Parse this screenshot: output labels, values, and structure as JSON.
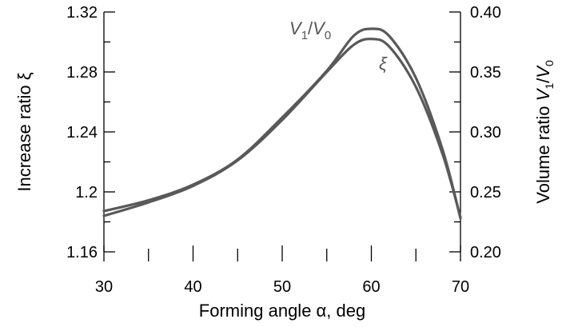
{
  "chart_data": {
    "type": "line",
    "xlabel": "Forming angle α,  deg",
    "ylabel_left": "Increase ratio ξ",
    "ylabel_right": "Volume ratio V1/V0",
    "xlim": [
      30,
      70
    ],
    "ylim_left": [
      1.16,
      1.32
    ],
    "ylim_right": [
      0.2,
      0.4
    ],
    "x_ticks": [
      30,
      40,
      50,
      60,
      70
    ],
    "x_tick_labels": [
      "30",
      "40",
      "50",
      "60",
      "70"
    ],
    "y_left_ticks": [
      1.16,
      1.2,
      1.24,
      1.28,
      1.32
    ],
    "y_left_tick_labels": [
      "1.16",
      "1.2",
      "1.24",
      "1.28",
      "1.32"
    ],
    "y_right_ticks": [
      0.2,
      0.25,
      0.3,
      0.35,
      0.4
    ],
    "y_right_tick_labels": [
      "0.20",
      "0.25",
      "0.30",
      "0.35",
      "0.40"
    ],
    "grid": false,
    "series": [
      {
        "name": "V1/V0",
        "axis": "right",
        "color": "#595959",
        "x": [
          30,
          35,
          40,
          45,
          50,
          55,
          58,
          60,
          62,
          65,
          68,
          70
        ],
        "y": [
          0.234,
          0.243,
          0.256,
          0.277,
          0.312,
          0.351,
          0.38,
          0.386,
          0.38,
          0.345,
          0.285,
          0.228
        ]
      },
      {
        "name": "ξ",
        "axis": "left",
        "color": "#595959",
        "x": [
          30,
          35,
          40,
          45,
          50,
          55,
          58,
          60,
          62,
          65,
          68,
          70
        ],
        "y": [
          1.184,
          1.193,
          1.204,
          1.221,
          1.248,
          1.28,
          1.298,
          1.302,
          1.297,
          1.27,
          1.225,
          1.183
        ]
      }
    ],
    "series_labels": [
      {
        "main": "V",
        "sub": "1",
        "sep": "/",
        "main2": "V",
        "sub2": "0"
      },
      {
        "main": "ξ"
      }
    ]
  }
}
